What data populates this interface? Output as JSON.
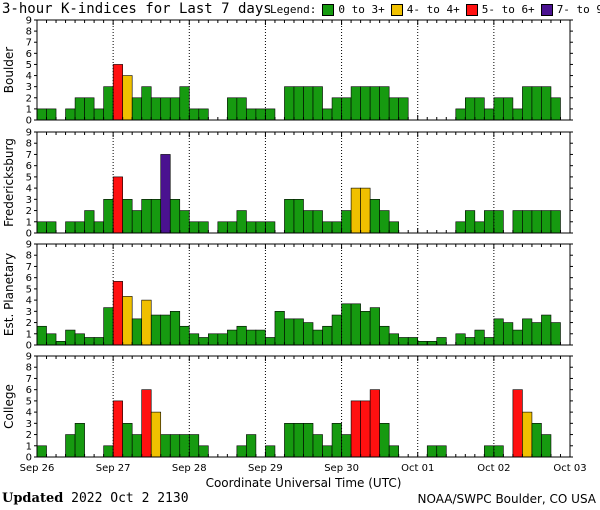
{
  "title": "3-hour K-indices for Last 7 days",
  "legend": {
    "label": "Legend:",
    "items": [
      {
        "label": "0 to 3+",
        "color": "#169a10"
      },
      {
        "label": "4- to 4+",
        "color": "#f0c000"
      },
      {
        "label": "5- to 6+",
        "color": "#ff1010"
      },
      {
        "label": "7- to 9",
        "color": "#4a1290"
      }
    ]
  },
  "footer": {
    "updated_label": "Updated",
    "updated_value": "2022 Oct  2 2130",
    "source": "NOAA/SWPC Boulder, CO USA"
  },
  "chart_data": [
    {
      "type": "bar",
      "panel": "Boulder",
      "ylabel": "Boulder",
      "ylim": [
        0,
        9
      ],
      "yticks": [
        0,
        1,
        2,
        3,
        4,
        5,
        6,
        7,
        8,
        9
      ],
      "xlabel": "Coordinate Universal Time (UTC)",
      "x_tick_labels": [
        "Sep 26",
        "Sep 27",
        "Sep 28",
        "Sep 29",
        "Sep 30",
        "Oct 01",
        "Oct 02",
        "Oct 03"
      ],
      "values": [
        1,
        1,
        0,
        1,
        2,
        2,
        1,
        3,
        5,
        4,
        2,
        3,
        2,
        2,
        2,
        3,
        1,
        1,
        0,
        0,
        2,
        2,
        1,
        1,
        1,
        0,
        3,
        3,
        3,
        3,
        1,
        2,
        2,
        3,
        3,
        3,
        3,
        2,
        2,
        0,
        0,
        0,
        0,
        0,
        1,
        2,
        2,
        1,
        2,
        2,
        1,
        3,
        3,
        3,
        2,
        0
      ]
    },
    {
      "type": "bar",
      "panel": "Fredericksburg",
      "ylabel": "Fredericksburg",
      "ylim": [
        0,
        9
      ],
      "yticks": [
        0,
        1,
        2,
        3,
        4,
        5,
        6,
        7,
        8,
        9
      ],
      "values": [
        1,
        1,
        0,
        1,
        1,
        2,
        1,
        3,
        5,
        3,
        2,
        3,
        3,
        7,
        3,
        2,
        1,
        1,
        0,
        1,
        1,
        2,
        1,
        1,
        1,
        0,
        3,
        3,
        2,
        2,
        1,
        1,
        2,
        4,
        4,
        3,
        2,
        1,
        0,
        0,
        0,
        0,
        0,
        0,
        1,
        2,
        1,
        2,
        2,
        0,
        2,
        2,
        2,
        2,
        2,
        0
      ]
    },
    {
      "type": "bar",
      "panel": "Est. Planetary",
      "ylabel": "Est. Planetary",
      "ylim": [
        0,
        9
      ],
      "yticks": [
        0,
        1,
        2,
        3,
        4,
        5,
        6,
        7,
        8,
        9
      ],
      "values": [
        1.67,
        1,
        0.33,
        1.33,
        1,
        0.67,
        0.67,
        3.33,
        5.67,
        4.33,
        2.33,
        4,
        2.67,
        2.67,
        3,
        1.67,
        1,
        0.67,
        1,
        1,
        1.33,
        1.67,
        1.33,
        1.33,
        0.67,
        3,
        2.33,
        2.33,
        2,
        1.33,
        1.67,
        2.67,
        3.67,
        3.67,
        3,
        3.33,
        1.67,
        1,
        0.67,
        0.67,
        0.33,
        0.33,
        0.67,
        0,
        1,
        0.67,
        1.33,
        0.67,
        2.33,
        2,
        1.33,
        2.33,
        2,
        2.67,
        2,
        0
      ]
    },
    {
      "type": "bar",
      "panel": "College",
      "ylabel": "College",
      "ylim": [
        0,
        9
      ],
      "yticks": [
        0,
        1,
        2,
        3,
        4,
        5,
        6,
        7,
        8,
        9
      ],
      "values": [
        1,
        0,
        0,
        2,
        3,
        0,
        0,
        1,
        5,
        3,
        2,
        6,
        4,
        2,
        2,
        2,
        2,
        1,
        0,
        0,
        0,
        1,
        2,
        0,
        1,
        0,
        3,
        3,
        3,
        2,
        1,
        3,
        2,
        5,
        5,
        6,
        3,
        1,
        0,
        0,
        0,
        1,
        1,
        0,
        0,
        0,
        0,
        1,
        1,
        0,
        6,
        4,
        3,
        2,
        0,
        0
      ]
    }
  ]
}
